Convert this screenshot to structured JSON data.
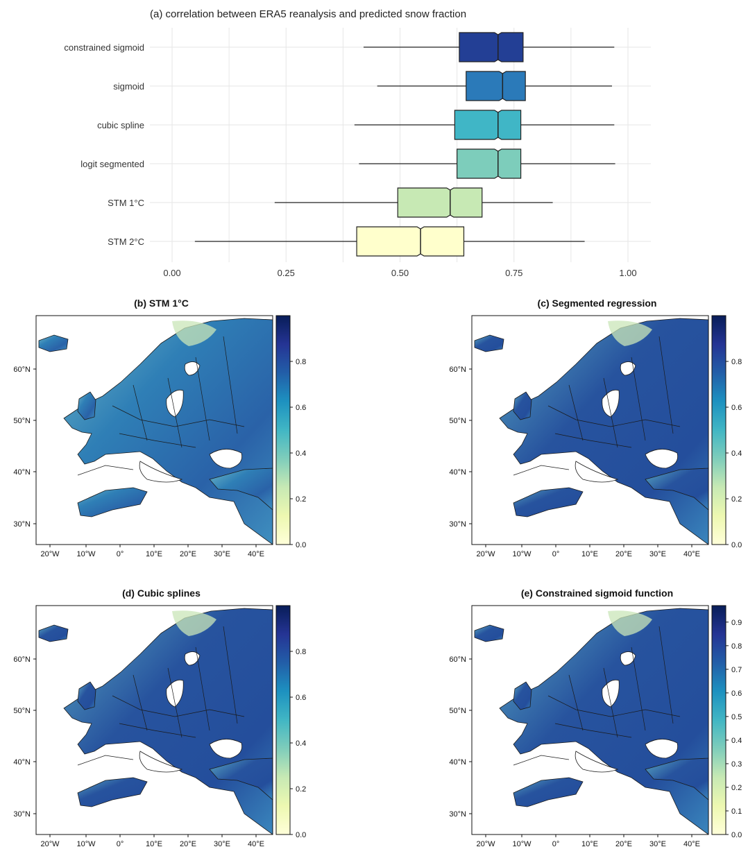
{
  "figure": {
    "panel_a": {
      "title": "(a) correlation between ERA5 reanalysis and predicted snow fraction",
      "x_ticks": [
        "0.00",
        "0.25",
        "0.50",
        "0.75",
        "1.00"
      ]
    },
    "maps": [
      {
        "title": "(b) STM 1°C",
        "colorbar_ticks": [
          "0.0",
          "0.2",
          "0.4",
          "0.6",
          "0.8"
        ]
      },
      {
        "title": "(c) Segmented regression",
        "colorbar_ticks": [
          "0.0",
          "0.2",
          "0.4",
          "0.6",
          "0.8"
        ]
      },
      {
        "title": "(d) Cubic splines",
        "colorbar_ticks": [
          "0.0",
          "0.2",
          "0.4",
          "0.6",
          "0.8"
        ]
      },
      {
        "title": "(e) Constrained sigmoid function",
        "colorbar_ticks": [
          "0.0",
          "0.1",
          "0.2",
          "0.3",
          "0.4",
          "0.5",
          "0.6",
          "0.7",
          "0.8",
          "0.9"
        ]
      }
    ],
    "map_lat_ticks": [
      "30°N",
      "40°N",
      "50°N",
      "60°N"
    ],
    "map_lon_ticks": [
      "20°W",
      "10°W",
      "0°",
      "10°E",
      "20°E",
      "30°E",
      "40°E"
    ]
  },
  "chart_data": [
    {
      "type": "boxplot",
      "title": "(a) correlation between ERA5 reanalysis and predicted snow fraction",
      "orientation": "horizontal",
      "notched": true,
      "xlim": [
        0,
        1
      ],
      "x_ticks": [
        0,
        0.25,
        0.5,
        0.75,
        1.0
      ],
      "grid": true,
      "categories": [
        "constrained sigmoid",
        "sigmoid",
        "cubic spline",
        "logit segmented",
        "STM 1°C",
        "STM 2°C"
      ],
      "boxes": [
        {
          "label": "constrained sigmoid",
          "whisker_low": 0.42,
          "q1": 0.63,
          "median": 0.715,
          "q3": 0.77,
          "whisker_high": 0.97,
          "color": "#233f95"
        },
        {
          "label": "sigmoid",
          "whisker_low": 0.45,
          "q1": 0.645,
          "median": 0.725,
          "q3": 0.775,
          "whisker_high": 0.965,
          "color": "#2b7ab9"
        },
        {
          "label": "cubic spline",
          "whisker_low": 0.4,
          "q1": 0.62,
          "median": 0.715,
          "q3": 0.765,
          "whisker_high": 0.97,
          "color": "#40b6c6"
        },
        {
          "label": "logit segmented",
          "whisker_low": 0.41,
          "q1": 0.625,
          "median": 0.715,
          "q3": 0.765,
          "whisker_high": 0.972,
          "color": "#7dcdbb"
        },
        {
          "label": "STM 1°C",
          "whisker_low": 0.225,
          "q1": 0.495,
          "median": 0.61,
          "q3": 0.68,
          "whisker_high": 0.835,
          "color": "#c7e9b4"
        },
        {
          "label": "STM 2°C",
          "whisker_low": 0.05,
          "q1": 0.405,
          "median": 0.545,
          "q3": 0.64,
          "whisker_high": 0.905,
          "color": "#ffffcc"
        }
      ]
    },
    {
      "type": "heatmap",
      "title": "(b) STM 1°C",
      "colorbar_range": [
        0,
        1
      ],
      "colorbar_ticks": [
        0,
        0.2,
        0.4,
        0.6,
        0.8
      ],
      "x_ticks": [
        "20°W",
        "10°W",
        "0°",
        "10°E",
        "20°E",
        "30°E",
        "40°E"
      ],
      "y_ticks": [
        "30°N",
        "40°N",
        "50°N",
        "60°N"
      ]
    },
    {
      "type": "heatmap",
      "title": "(c) Segmented regression",
      "colorbar_range": [
        0,
        1
      ],
      "colorbar_ticks": [
        0,
        0.2,
        0.4,
        0.6,
        0.8
      ],
      "x_ticks": [
        "20°W",
        "10°W",
        "0°",
        "10°E",
        "20°E",
        "30°E",
        "40°E"
      ],
      "y_ticks": [
        "30°N",
        "40°N",
        "50°N",
        "60°N"
      ]
    },
    {
      "type": "heatmap",
      "title": "(d) Cubic splines",
      "colorbar_range": [
        0,
        1
      ],
      "colorbar_ticks": [
        0,
        0.2,
        0.4,
        0.6,
        0.8
      ],
      "x_ticks": [
        "20°W",
        "10°W",
        "0°",
        "10°E",
        "20°E",
        "30°E",
        "40°E"
      ],
      "y_ticks": [
        "30°N",
        "40°N",
        "50°N",
        "60°N"
      ]
    },
    {
      "type": "heatmap",
      "title": "(e) Constrained sigmoid function",
      "colorbar_range": [
        0,
        0.97
      ],
      "colorbar_ticks": [
        0,
        0.1,
        0.2,
        0.3,
        0.4,
        0.5,
        0.6,
        0.7,
        0.8,
        0.9
      ],
      "x_ticks": [
        "20°W",
        "10°W",
        "0°",
        "10°E",
        "20°E",
        "30°E",
        "40°E"
      ],
      "y_ticks": [
        "30°N",
        "40°N",
        "50°N",
        "60°N"
      ]
    }
  ],
  "colors": {
    "colorbar_stops": [
      "#ffffd9",
      "#edf8b1",
      "#c7e9b4",
      "#7fcdbb",
      "#41b6c4",
      "#1d91c0",
      "#225ea8",
      "#253494",
      "#081d58"
    ],
    "grid": "#e6e6e6",
    "axis": "#222222"
  }
}
